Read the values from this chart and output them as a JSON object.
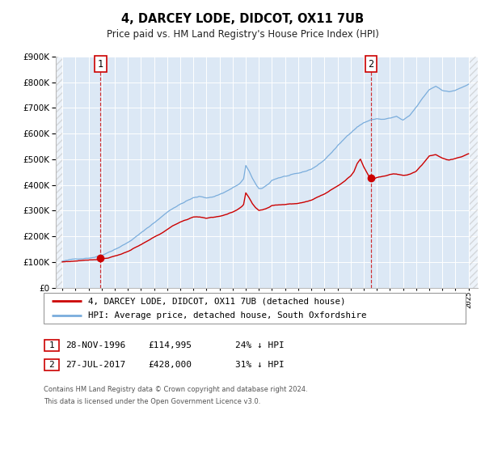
{
  "title": "4, DARCEY LODE, DIDCOT, OX11 7UB",
  "subtitle": "Price paid vs. HM Land Registry's House Price Index (HPI)",
  "legend_line1": "4, DARCEY LODE, DIDCOT, OX11 7UB (detached house)",
  "legend_line2": "HPI: Average price, detached house, South Oxfordshire",
  "transaction1_label": "1",
  "transaction1_date": "28-NOV-1996",
  "transaction1_price": "£114,995",
  "transaction1_hpi": "24% ↓ HPI",
  "transaction2_label": "2",
  "transaction2_date": "27-JUL-2017",
  "transaction2_price": "£428,000",
  "transaction2_hpi": "31% ↓ HPI",
  "footer1": "Contains HM Land Registry data © Crown copyright and database right 2024.",
  "footer2": "This data is licensed under the Open Government Licence v3.0.",
  "red_color": "#cc0000",
  "blue_color": "#7aaddc",
  "plot_bg_color": "#dce8f5",
  "grid_color": "#ffffff",
  "marker1_year": 1996.91,
  "marker1_value": 114995,
  "marker2_year": 2017.56,
  "marker2_value": 428000,
  "vline1_year": 1996.91,
  "vline2_year": 2017.56,
  "xmin": 1993.5,
  "xmax": 2025.7,
  "ymin": 0,
  "ymax": 900000,
  "yticks": [
    0,
    100000,
    200000,
    300000,
    400000,
    500000,
    600000,
    700000,
    800000,
    900000
  ],
  "hpi_anchors": [
    [
      1994.0,
      103000
    ],
    [
      1995.0,
      110000
    ],
    [
      1996.0,
      117000
    ],
    [
      1996.5,
      122000
    ],
    [
      1997.0,
      130000
    ],
    [
      1997.5,
      142000
    ],
    [
      1998.0,
      155000
    ],
    [
      1998.5,
      168000
    ],
    [
      1999.0,
      182000
    ],
    [
      1999.5,
      200000
    ],
    [
      2000.0,
      218000
    ],
    [
      2000.5,
      238000
    ],
    [
      2001.0,
      258000
    ],
    [
      2001.5,
      278000
    ],
    [
      2002.0,
      300000
    ],
    [
      2002.5,
      318000
    ],
    [
      2003.0,
      332000
    ],
    [
      2003.5,
      345000
    ],
    [
      2004.0,
      356000
    ],
    [
      2004.5,
      360000
    ],
    [
      2005.0,
      356000
    ],
    [
      2005.5,
      360000
    ],
    [
      2006.0,
      370000
    ],
    [
      2006.5,
      382000
    ],
    [
      2007.0,
      396000
    ],
    [
      2007.5,
      410000
    ],
    [
      2007.83,
      428000
    ],
    [
      2008.0,
      480000
    ],
    [
      2008.25,
      460000
    ],
    [
      2008.5,
      432000
    ],
    [
      2008.75,
      408000
    ],
    [
      2009.0,
      388000
    ],
    [
      2009.25,
      390000
    ],
    [
      2009.5,
      398000
    ],
    [
      2009.75,
      408000
    ],
    [
      2010.0,
      422000
    ],
    [
      2010.5,
      432000
    ],
    [
      2011.0,
      438000
    ],
    [
      2011.5,
      442000
    ],
    [
      2012.0,
      445000
    ],
    [
      2012.5,
      452000
    ],
    [
      2013.0,
      462000
    ],
    [
      2013.5,
      478000
    ],
    [
      2014.0,
      498000
    ],
    [
      2014.5,
      525000
    ],
    [
      2015.0,
      552000
    ],
    [
      2015.5,
      578000
    ],
    [
      2016.0,
      605000
    ],
    [
      2016.5,
      628000
    ],
    [
      2017.0,
      645000
    ],
    [
      2017.5,
      655000
    ],
    [
      2018.0,
      660000
    ],
    [
      2018.5,
      658000
    ],
    [
      2019.0,
      662000
    ],
    [
      2019.5,
      668000
    ],
    [
      2020.0,
      652000
    ],
    [
      2020.5,
      668000
    ],
    [
      2021.0,
      700000
    ],
    [
      2021.5,
      735000
    ],
    [
      2022.0,
      768000
    ],
    [
      2022.5,
      782000
    ],
    [
      2023.0,
      768000
    ],
    [
      2023.5,
      762000
    ],
    [
      2024.0,
      768000
    ],
    [
      2024.5,
      778000
    ],
    [
      2025.0,
      790000
    ]
  ],
  "red_anchors": [
    [
      1994.0,
      100000
    ],
    [
      1994.5,
      102000
    ],
    [
      1995.0,
      104000
    ],
    [
      1995.5,
      107000
    ],
    [
      1996.0,
      110000
    ],
    [
      1996.5,
      112000
    ],
    [
      1996.91,
      114995
    ],
    [
      1997.0,
      116000
    ],
    [
      1997.5,
      120000
    ],
    [
      1998.0,
      128000
    ],
    [
      1998.5,
      136000
    ],
    [
      1999.0,
      146000
    ],
    [
      1999.5,
      158000
    ],
    [
      2000.0,
      170000
    ],
    [
      2000.5,
      184000
    ],
    [
      2001.0,
      198000
    ],
    [
      2001.5,
      212000
    ],
    [
      2002.0,
      228000
    ],
    [
      2002.5,
      244000
    ],
    [
      2003.0,
      258000
    ],
    [
      2003.5,
      268000
    ],
    [
      2004.0,
      278000
    ],
    [
      2004.5,
      278000
    ],
    [
      2005.0,
      274000
    ],
    [
      2005.5,
      276000
    ],
    [
      2006.0,
      282000
    ],
    [
      2006.5,
      288000
    ],
    [
      2007.0,
      296000
    ],
    [
      2007.5,
      308000
    ],
    [
      2007.83,
      322000
    ],
    [
      2008.0,
      368000
    ],
    [
      2008.25,
      348000
    ],
    [
      2008.5,
      326000
    ],
    [
      2008.75,
      310000
    ],
    [
      2009.0,
      300000
    ],
    [
      2009.25,
      302000
    ],
    [
      2009.5,
      306000
    ],
    [
      2009.75,
      312000
    ],
    [
      2010.0,
      320000
    ],
    [
      2010.5,
      324000
    ],
    [
      2011.0,
      326000
    ],
    [
      2011.5,
      328000
    ],
    [
      2012.0,
      330000
    ],
    [
      2012.5,
      336000
    ],
    [
      2013.0,
      344000
    ],
    [
      2013.5,
      355000
    ],
    [
      2014.0,
      368000
    ],
    [
      2014.5,
      385000
    ],
    [
      2015.0,
      402000
    ],
    [
      2015.5,
      420000
    ],
    [
      2016.0,
      440000
    ],
    [
      2016.25,
      458000
    ],
    [
      2016.5,
      490000
    ],
    [
      2016.75,
      508000
    ],
    [
      2017.0,
      478000
    ],
    [
      2017.25,
      456000
    ],
    [
      2017.56,
      428000
    ],
    [
      2017.75,
      432000
    ],
    [
      2018.0,
      438000
    ],
    [
      2018.5,
      442000
    ],
    [
      2019.0,
      448000
    ],
    [
      2019.5,
      450000
    ],
    [
      2020.0,
      444000
    ],
    [
      2020.5,
      450000
    ],
    [
      2021.0,
      462000
    ],
    [
      2021.5,
      490000
    ],
    [
      2022.0,
      522000
    ],
    [
      2022.5,
      528000
    ],
    [
      2023.0,
      515000
    ],
    [
      2023.5,
      508000
    ],
    [
      2024.0,
      512000
    ],
    [
      2024.5,
      520000
    ],
    [
      2025.0,
      530000
    ]
  ]
}
